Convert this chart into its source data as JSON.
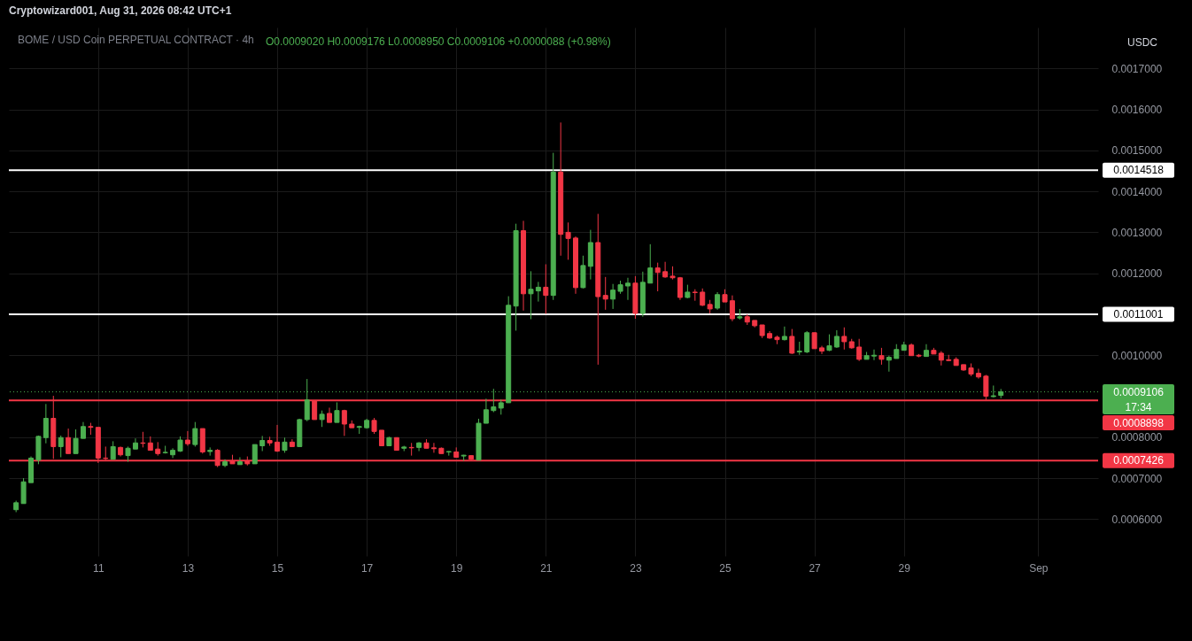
{
  "chart_data": {
    "type": "candlestick",
    "title": "BOME / USD Coin PERPETUAL CONTRACT · 4h",
    "annotations": [
      "Cryptowizard001, Aug 31, 2026 08:42 UTC+1",
      "O0.0009020 H0.0009176 L0.0008950 C0.0009106 +0.0000088 (+0.98%)",
      "USDC"
    ],
    "x": [
      "2026-08-09T05:00",
      "2026-08-09T09:00",
      "2026-08-09T13:00",
      "2026-08-09T17:00",
      "2026-08-09T21:00",
      "2026-08-10T01:00",
      "2026-08-10T05:00",
      "2026-08-10T09:00",
      "2026-08-10T13:00",
      "2026-08-10T17:00",
      "2026-08-10T21:00",
      "2026-08-11T01:00",
      "2026-08-11T05:00",
      "2026-08-11T09:00",
      "2026-08-11T13:00",
      "2026-08-11T17:00",
      "2026-08-11T21:00",
      "2026-08-12T01:00",
      "2026-08-12T05:00",
      "2026-08-12T09:00",
      "2026-08-12T13:00",
      "2026-08-12T17:00",
      "2026-08-12T21:00",
      "2026-08-13T01:00",
      "2026-08-13T05:00",
      "2026-08-13T09:00",
      "2026-08-13T13:00",
      "2026-08-13T17:00",
      "2026-08-13T21:00",
      "2026-08-14T01:00",
      "2026-08-14T05:00",
      "2026-08-14T09:00",
      "2026-08-14T13:00",
      "2026-08-14T17:00",
      "2026-08-14T21:00",
      "2026-08-15T01:00",
      "2026-08-15T05:00",
      "2026-08-15T09:00",
      "2026-08-15T13:00",
      "2026-08-15T17:00",
      "2026-08-15T21:00",
      "2026-08-16T01:00",
      "2026-08-16T05:00",
      "2026-08-16T09:00",
      "2026-08-16T13:00",
      "2026-08-16T17:00",
      "2026-08-16T21:00",
      "2026-08-17T01:00",
      "2026-08-17T05:00",
      "2026-08-17T09:00",
      "2026-08-17T13:00",
      "2026-08-17T17:00",
      "2026-08-17T21:00",
      "2026-08-18T01:00",
      "2026-08-18T05:00",
      "2026-08-18T09:00",
      "2026-08-18T13:00",
      "2026-08-18T17:00",
      "2026-08-18T21:00",
      "2026-08-19T01:00",
      "2026-08-19T05:00",
      "2026-08-19T09:00",
      "2026-08-19T13:00",
      "2026-08-19T17:00",
      "2026-08-19T21:00",
      "2026-08-20T01:00",
      "2026-08-20T05:00",
      "2026-08-20T09:00",
      "2026-08-20T13:00",
      "2026-08-20T17:00",
      "2026-08-20T21:00",
      "2026-08-21T01:00",
      "2026-08-21T05:00",
      "2026-08-21T09:00",
      "2026-08-21T13:00",
      "2026-08-21T17:00",
      "2026-08-21T21:00",
      "2026-08-22T01:00",
      "2026-08-22T05:00",
      "2026-08-22T09:00",
      "2026-08-22T13:00",
      "2026-08-22T17:00",
      "2026-08-22T21:00",
      "2026-08-23T01:00",
      "2026-08-23T05:00",
      "2026-08-23T09:00",
      "2026-08-23T13:00",
      "2026-08-23T17:00",
      "2026-08-23T21:00",
      "2026-08-24T01:00",
      "2026-08-24T05:00",
      "2026-08-24T09:00",
      "2026-08-24T13:00",
      "2026-08-24T17:00",
      "2026-08-24T21:00",
      "2026-08-25T01:00",
      "2026-08-25T05:00",
      "2026-08-25T09:00",
      "2026-08-25T13:00",
      "2026-08-25T17:00",
      "2026-08-25T21:00",
      "2026-08-26T01:00",
      "2026-08-26T05:00",
      "2026-08-26T09:00",
      "2026-08-26T13:00",
      "2026-08-26T17:00",
      "2026-08-26T21:00",
      "2026-08-27T01:00",
      "2026-08-27T05:00",
      "2026-08-27T09:00",
      "2026-08-27T13:00",
      "2026-08-27T17:00",
      "2026-08-27T21:00",
      "2026-08-28T01:00",
      "2026-08-28T05:00",
      "2026-08-28T09:00",
      "2026-08-28T13:00",
      "2026-08-28T17:00",
      "2026-08-28T21:00",
      "2026-08-29T01:00",
      "2026-08-29T05:00",
      "2026-08-29T09:00",
      "2026-08-29T13:00",
      "2026-08-29T17:00",
      "2026-08-29T21:00",
      "2026-08-30T01:00",
      "2026-08-30T05:00",
      "2026-08-30T09:00",
      "2026-08-30T13:00",
      "2026-08-30T17:00",
      "2026-08-30T21:00",
      "2026-08-31T01:00",
      "2026-08-31T05:00"
    ],
    "ohlc": [
      [
        0.000623,
        0.000645,
        0.000617,
        0.00064
      ],
      [
        0.000638,
        0.0007,
        0.000638,
        0.000691
      ],
      [
        0.000689,
        0.000753,
        0.000689,
        0.000749
      ],
      [
        0.000744,
        0.000804,
        0.000734,
        0.000802
      ],
      [
        0.000799,
        0.000881,
        0.000785,
        0.000846
      ],
      [
        0.000846,
        0.000901,
        0.000747,
        0.000777
      ],
      [
        0.000777,
        0.000804,
        0.000751,
        0.000799
      ],
      [
        0.000799,
        0.000821,
        0.00076,
        0.00076
      ],
      [
        0.00076,
        0.000819,
        0.00076,
        0.000797
      ],
      [
        0.000797,
        0.000837,
        0.000797,
        0.000826
      ],
      [
        0.000826,
        0.000835,
        0.000806,
        0.000824
      ],
      [
        0.000824,
        0.000824,
        0.000737,
        0.000749
      ],
      [
        0.000749,
        0.000777,
        0.000744,
        0.000748
      ],
      [
        0.000746,
        0.00079,
        0.000746,
        0.000777
      ],
      [
        0.000775,
        0.000777,
        0.000753,
        0.000757
      ],
      [
        0.000755,
        0.000777,
        0.00074,
        0.000773
      ],
      [
        0.000771,
        0.000797,
        0.000771,
        0.000786
      ],
      [
        0.000786,
        0.000813,
        0.000775,
        0.000785
      ],
      [
        0.000786,
        0.000802,
        0.000768,
        0.000768
      ],
      [
        0.000771,
        0.000788,
        0.000755,
        0.00076
      ],
      [
        0.000762,
        0.000779,
        0.00076,
        0.000763
      ],
      [
        0.000757,
        0.000773,
        0.000749,
        0.000768
      ],
      [
        0.000766,
        0.000802,
        0.000764,
        0.000793
      ],
      [
        0.000793,
        0.000815,
        0.000779,
        0.000784
      ],
      [
        0.000782,
        0.000837,
        0.000777,
        0.000821
      ],
      [
        0.000821,
        0.000821,
        0.00076,
        0.000764
      ],
      [
        0.000765,
        0.000775,
        0.000755,
        0.000768
      ],
      [
        0.000768,
        0.000771,
        0.000727,
        0.000731
      ],
      [
        0.000731,
        0.000746,
        0.000727,
        0.00074
      ],
      [
        0.000742,
        0.000757,
        0.000735,
        0.000735
      ],
      [
        0.000733,
        0.000751,
        0.000733,
        0.00074
      ],
      [
        0.000742,
        0.000753,
        0.000731,
        0.000735
      ],
      [
        0.000735,
        0.000782,
        0.000735,
        0.000782
      ],
      [
        0.000779,
        0.000803,
        0.000766,
        0.000792
      ],
      [
        0.000792,
        0.000801,
        0.000779,
        0.000786
      ],
      [
        0.000788,
        0.00083,
        0.000764,
        0.000766
      ],
      [
        0.000768,
        0.000799,
        0.000762,
        0.000788
      ],
      [
        0.000788,
        0.000795,
        0.000777,
        0.000777
      ],
      [
        0.000777,
        0.000845,
        0.000777,
        0.000843
      ],
      [
        0.000843,
        0.000942,
        0.000839,
        0.000891
      ],
      [
        0.000889,
        0.000889,
        0.000843,
        0.000843
      ],
      [
        0.000843,
        0.000865,
        0.000825,
        0.000856
      ],
      [
        0.000858,
        0.000872,
        0.000836,
        0.000836
      ],
      [
        0.000836,
        0.000885,
        0.000836,
        0.000865
      ],
      [
        0.000865,
        0.000867,
        0.000803,
        0.000832
      ],
      [
        0.000832,
        0.000841,
        0.000823,
        0.000823
      ],
      [
        0.000824,
        0.000828,
        0.000808,
        0.000826
      ],
      [
        0.000823,
        0.000845,
        0.000821,
        0.000841
      ],
      [
        0.000841,
        0.000847,
        0.000808,
        0.000814
      ],
      [
        0.000817,
        0.000817,
        0.000779,
        0.000779
      ],
      [
        0.000779,
        0.000801,
        0.000779,
        0.000799
      ],
      [
        0.000799,
        0.000799,
        0.000768,
        0.000768
      ],
      [
        0.000773,
        0.000779,
        0.000766,
        0.000776
      ],
      [
        0.000775,
        0.000786,
        0.000755,
        0.000774
      ],
      [
        0.000775,
        0.000788,
        0.000766,
        0.000786
      ],
      [
        0.000786,
        0.000795,
        0.000773,
        0.000773
      ],
      [
        0.000774,
        0.000786,
        0.000762,
        0.000772
      ],
      [
        0.000773,
        0.000775,
        0.00076,
        0.00076
      ],
      [
        0.000764,
        0.000766,
        0.000755,
        0.000765
      ],
      [
        0.000764,
        0.000775,
        0.000751,
        0.000751
      ],
      [
        0.000754,
        0.000757,
        0.000742,
        0.000756
      ],
      [
        0.000755,
        0.000755,
        0.000744,
        0.000746
      ],
      [
        0.000744,
        0.000845,
        0.000744,
        0.000834
      ],
      [
        0.000834,
        0.000894,
        0.000834,
        0.000867
      ],
      [
        0.000865,
        0.000918,
        0.000861,
        0.000874
      ],
      [
        0.000871,
        0.000892,
        0.000855,
        0.000884
      ],
      [
        0.000884,
        0.001144,
        0.000884,
        0.001122
      ],
      [
        0.00112,
        0.001321,
        0.00106,
        0.001304
      ],
      [
        0.001304,
        0.001328,
        0.001109,
        0.00115
      ],
      [
        0.00115,
        0.001205,
        0.001088,
        0.001161
      ],
      [
        0.001157,
        0.001179,
        0.001131,
        0.001166
      ],
      [
        0.001166,
        0.001222,
        0.001101,
        0.001146
      ],
      [
        0.001146,
        0.001494,
        0.001135,
        0.001447
      ],
      [
        0.001447,
        0.001568,
        0.001243,
        0.001295
      ],
      [
        0.0013,
        0.001324,
        0.001233,
        0.001285
      ],
      [
        0.001286,
        0.00129,
        0.00115,
        0.001165
      ],
      [
        0.001165,
        0.001243,
        0.001163,
        0.001219
      ],
      [
        0.001217,
        0.001306,
        0.001185,
        0.001275
      ],
      [
        0.001275,
        0.001345,
        0.000977,
        0.001143
      ],
      [
        0.001146,
        0.001191,
        0.001111,
        0.001137
      ],
      [
        0.001137,
        0.001174,
        0.001113,
        0.001159
      ],
      [
        0.001156,
        0.001182,
        0.00115,
        0.001172
      ],
      [
        0.001169,
        0.001189,
        0.001135,
        0.001176
      ],
      [
        0.001176,
        0.001193,
        0.001089,
        0.001102
      ],
      [
        0.001102,
        0.001204,
        0.001094,
        0.001178
      ],
      [
        0.001176,
        0.001271,
        0.001176,
        0.001213
      ],
      [
        0.001213,
        0.001226,
        0.001156,
        0.001202
      ],
      [
        0.001204,
        0.001228,
        0.001189,
        0.001191
      ],
      [
        0.001193,
        0.001217,
        0.001185,
        0.001189
      ],
      [
        0.001189,
        0.001191,
        0.001135,
        0.001141
      ],
      [
        0.001141,
        0.001172,
        0.001139,
        0.001154
      ],
      [
        0.001154,
        0.001161,
        0.001133,
        0.001153
      ],
      [
        0.001154,
        0.001163,
        0.00112,
        0.001122
      ],
      [
        0.001124,
        0.001135,
        0.001102,
        0.001113
      ],
      [
        0.001115,
        0.001154,
        0.001111,
        0.001148
      ],
      [
        0.001148,
        0.001161,
        0.00113,
        0.00113
      ],
      [
        0.001133,
        0.001146,
        0.001083,
        0.001089
      ],
      [
        0.001091,
        0.001113,
        0.001087,
        0.001094
      ],
      [
        0.001094,
        0.0011,
        0.001074,
        0.001081
      ],
      [
        0.001085,
        0.001085,
        0.001068,
        0.001072
      ],
      [
        0.001074,
        0.001074,
        0.001042,
        0.001048
      ],
      [
        0.001053,
        0.001059,
        0.00104,
        0.001042
      ],
      [
        0.001044,
        0.001048,
        0.001027,
        0.001038
      ],
      [
        0.001038,
        0.00107,
        0.001036,
        0.001046
      ],
      [
        0.001046,
        0.001064,
        0.001003,
        0.001005
      ],
      [
        0.001008,
        0.001033,
        0.001001,
        0.00101
      ],
      [
        0.001008,
        0.001059,
        0.001005,
        0.001055
      ],
      [
        0.001055,
        0.001055,
        0.001016,
        0.001016
      ],
      [
        0.001018,
        0.001023,
        0.001003,
        0.00101
      ],
      [
        0.001012,
        0.001051,
        0.00101,
        0.001023
      ],
      [
        0.00102,
        0.001061,
        0.001018,
        0.001046
      ],
      [
        0.001046,
        0.001068,
        0.001014,
        0.001033
      ],
      [
        0.001033,
        0.00104,
        0.001016,
        0.001018
      ],
      [
        0.00102,
        0.00104,
        0.000986,
        0.00099
      ],
      [
        0.00099,
        0.001008,
        0.00099,
        0.000999
      ],
      [
        0.000998,
        0.001014,
        0.000988,
        0.001
      ],
      [
        0.000999,
        0.001018,
        0.000977,
        0.00099
      ],
      [
        0.000988,
        0.000999,
        0.00096,
        0.000995
      ],
      [
        0.000992,
        0.001027,
        0.000992,
        0.001014
      ],
      [
        0.001012,
        0.001033,
        0.001012,
        0.001025
      ],
      [
        0.001025,
        0.001029,
        0.000999,
        0.000999
      ],
      [
        0.001,
        0.001003,
        0.000995,
        0.000998
      ],
      [
        0.000997,
        0.001027,
        0.000997,
        0.001012
      ],
      [
        0.001012,
        0.001018,
        0.001003,
        0.001003
      ],
      [
        0.001005,
        0.00101,
        0.000975,
        0.000988
      ],
      [
        0.000989,
        0.001001,
        0.000986,
        0.000987
      ],
      [
        0.00099,
        0.000995,
        0.000975,
        0.000975
      ],
      [
        0.000977,
        0.000977,
        0.000962,
        0.000964
      ],
      [
        0.000969,
        0.00098,
        0.000949,
        0.000954
      ],
      [
        0.000956,
        0.000967,
        0.000943,
        0.000947
      ],
      [
        0.000949,
        0.000952,
        0.000891,
        0.0009
      ],
      [
        0.000899,
        0.000926,
        0.000897,
        0.000901
      ],
      [
        0.000902,
        0.0009176,
        0.000895,
        0.0009106
      ]
    ],
    "colors": [
      "#4caf50",
      "#4caf50",
      "#4caf50",
      "#4caf50",
      "#4caf50",
      "#f23645",
      "#4caf50",
      "#f23645",
      "#4caf50",
      "#4caf50",
      "#f23645",
      "#f23645",
      "#f23645",
      "#4caf50",
      "#f23645",
      "#4caf50",
      "#4caf50",
      "#f23645",
      "#f23645",
      "#f23645",
      "#4caf50",
      "#4caf50",
      "#4caf50",
      "#f23645",
      "#4caf50",
      "#f23645",
      "#4caf50",
      "#f23645",
      "#4caf50",
      "#f23645",
      "#4caf50",
      "#f23645",
      "#4caf50",
      "#4caf50",
      "#f23645",
      "#f23645",
      "#4caf50",
      "#f23645",
      "#4caf50",
      "#4caf50",
      "#f23645",
      "#4caf50",
      "#f23645",
      "#4caf50",
      "#f23645",
      "#f23645",
      "#4caf50",
      "#4caf50",
      "#f23645",
      "#f23645",
      "#4caf50",
      "#f23645",
      "#4caf50",
      "#f23645",
      "#4caf50",
      "#f23645",
      "#f23645",
      "#f23645",
      "#4caf50",
      "#f23645",
      "#4caf50",
      "#f23645",
      "#4caf50",
      "#4caf50",
      "#4caf50",
      "#4caf50",
      "#4caf50",
      "#4caf50",
      "#f23645",
      "#4caf50",
      "#4caf50",
      "#f23645",
      "#4caf50",
      "#f23645",
      "#f23645",
      "#f23645",
      "#4caf50",
      "#4caf50",
      "#f23645",
      "#f23645",
      "#4caf50",
      "#4caf50",
      "#4caf50",
      "#f23645",
      "#4caf50",
      "#4caf50",
      "#f23645",
      "#f23645",
      "#f23645",
      "#f23645",
      "#4caf50",
      "#f23645",
      "#f23645",
      "#f23645",
      "#4caf50",
      "#f23645",
      "#f23645",
      "#4caf50",
      "#f23645",
      "#f23645",
      "#f23645",
      "#f23645",
      "#f23645",
      "#4caf50",
      "#f23645",
      "#4caf50",
      "#4caf50",
      "#f23645",
      "#f23645",
      "#4caf50",
      "#4caf50",
      "#f23645",
      "#f23645",
      "#f23645",
      "#4caf50",
      "#4caf50",
      "#f23645",
      "#4caf50",
      "#4caf50",
      "#4caf50",
      "#f23645",
      "#f23645",
      "#4caf50",
      "#f23645",
      "#f23645",
      "#f23645",
      "#f23645",
      "#f23645",
      "#f23645",
      "#f23645",
      "#f23645",
      "#4caf50",
      "#4caf50"
    ],
    "xlim": [
      "2026-08-09T03:30",
      "2026-09-02T06:45"
    ],
    "xticks": [
      {
        "value": "2026-08-11T01:00",
        "label": "11"
      },
      {
        "value": "2026-08-13T01:00",
        "label": "13"
      },
      {
        "value": "2026-08-15T01:00",
        "label": "15"
      },
      {
        "value": "2026-08-17T01:00",
        "label": "17"
      },
      {
        "value": "2026-08-19T01:00",
        "label": "19"
      },
      {
        "value": "2026-08-21T01:00",
        "label": "21"
      },
      {
        "value": "2026-08-23T01:00",
        "label": "23"
      },
      {
        "value": "2026-08-25T01:00",
        "label": "25"
      },
      {
        "value": "2026-08-27T01:00",
        "label": "27"
      },
      {
        "value": "2026-08-29T01:00",
        "label": "29"
      },
      {
        "value": "2026-09-01T01:00",
        "label": "Sep"
      }
    ],
    "ylim": [
      0.00051,
      0.0018
    ],
    "yticks": [
      {
        "value": 0.0006,
        "label": "0.0006000"
      },
      {
        "value": 0.0007,
        "label": "0.0007000"
      },
      {
        "value": 0.0008,
        "label": "0.0008000"
      },
      {
        "value": 0.001,
        "label": "0.0010000"
      },
      {
        "value": 0.0012,
        "label": "0.0012000"
      },
      {
        "value": 0.0013,
        "label": "0.0013000"
      },
      {
        "value": 0.0014,
        "label": "0.0014000"
      },
      {
        "value": 0.0015,
        "label": "0.0015000"
      },
      {
        "value": 0.0016,
        "label": "0.0016000"
      },
      {
        "value": 0.0017,
        "label": "0.0017000"
      }
    ],
    "ref_lines": [
      {
        "axis": "y",
        "value": 0.0014518,
        "label": "0.0014518",
        "color": "#ffffff"
      },
      {
        "axis": "y",
        "value": 0.0011001,
        "label": "0.0011001",
        "color": "#ffffff"
      },
      {
        "axis": "y",
        "value": 0.0009106,
        "label": "0.0009106\n17:34",
        "color": "#4caf50",
        "line_style": "dotted"
      },
      {
        "axis": "y",
        "value": 0.0008898,
        "label": "0.0008898",
        "color": "#f23645"
      },
      {
        "axis": "y",
        "value": 0.0007426,
        "label": "0.0007426",
        "color": "#f23645"
      }
    ],
    "grid": true
  }
}
